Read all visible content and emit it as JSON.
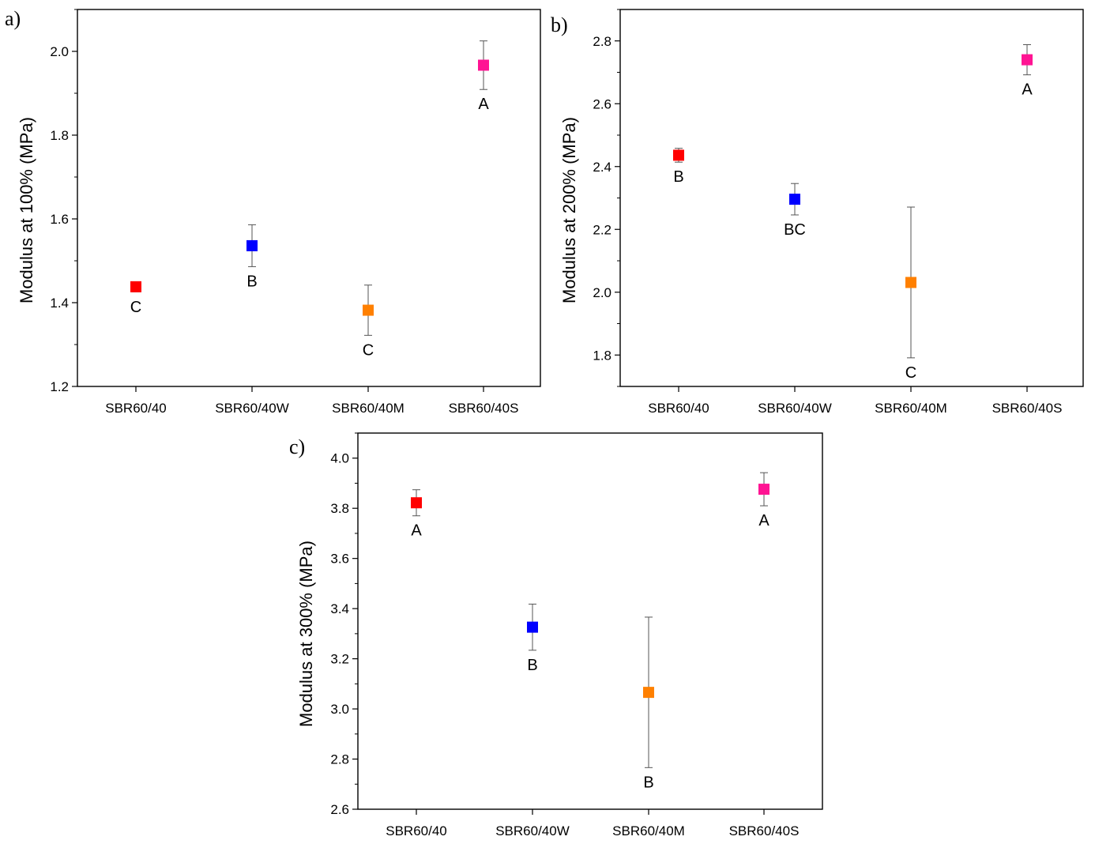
{
  "chart_data": [
    {
      "panel": "a)",
      "type": "scatter",
      "categories": [
        "SBR60/40",
        "SBR60/40W",
        "SBR60/40M",
        "SBR60/40S"
      ],
      "values": [
        1.438,
        1.536,
        1.382,
        1.967
      ],
      "errors": [
        0.012,
        0.05,
        0.06,
        0.058
      ],
      "groups": [
        "C",
        "B",
        "C",
        "A"
      ],
      "colors": [
        "#ff0000",
        "#0000ff",
        "#ff8000",
        "#ff1493"
      ],
      "ylabel": "Modulus at 100% (MPa)",
      "ylim": [
        1.2,
        2.1
      ],
      "yticks": [
        1.2,
        1.4,
        1.6,
        1.8,
        2.0
      ],
      "ytick_labels": [
        "1.2",
        "1.4",
        "1.6",
        "1.8",
        "2.0"
      ],
      "yminor_step": 0.1
    },
    {
      "panel": "b)",
      "type": "scatter",
      "categories": [
        "SBR60/40",
        "SBR60/40W",
        "SBR60/40M",
        "SBR60/40S"
      ],
      "values": [
        2.436,
        2.296,
        2.031,
        2.74
      ],
      "errors": [
        0.022,
        0.05,
        0.24,
        0.048
      ],
      "groups": [
        "B",
        "BC",
        "C",
        "A"
      ],
      "colors": [
        "#ff0000",
        "#0000ff",
        "#ff8000",
        "#ff1493"
      ],
      "ylabel": "Modulus at 200% (MPa)",
      "ylim": [
        1.7,
        2.9
      ],
      "yticks": [
        1.8,
        2.0,
        2.2,
        2.4,
        2.6,
        2.8
      ],
      "ytick_labels": [
        "1.8",
        "2.0",
        "2.2",
        "2.4",
        "2.6",
        "2.8"
      ],
      "yminor_step": 0.1
    },
    {
      "panel": "c)",
      "type": "scatter",
      "categories": [
        "SBR60/40",
        "SBR60/40W",
        "SBR60/40M",
        "SBR60/40S"
      ],
      "values": [
        3.822,
        3.326,
        3.066,
        3.876
      ],
      "errors": [
        0.052,
        0.092,
        0.3,
        0.066
      ],
      "groups": [
        "A",
        "B",
        "B",
        "A"
      ],
      "colors": [
        "#ff0000",
        "#0000ff",
        "#ff8000",
        "#ff1493"
      ],
      "ylabel": "Modulus at 300% (MPa)",
      "ylim": [
        2.6,
        4.1
      ],
      "yticks": [
        2.6,
        2.8,
        3.0,
        3.2,
        3.4,
        3.6,
        3.8,
        4.0
      ],
      "ytick_labels": [
        "2.6",
        "2.8",
        "3.0",
        "3.2",
        "3.4",
        "3.6",
        "3.8",
        "4.0"
      ],
      "yminor_step": 0.1
    }
  ]
}
